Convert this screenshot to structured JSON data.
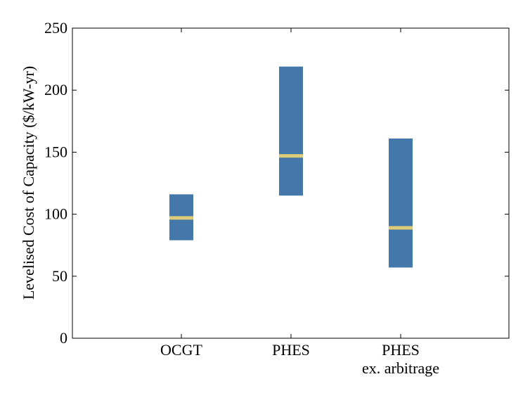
{
  "chart_data": {
    "type": "box",
    "title": "",
    "xlabel": "",
    "ylabel": "Levelised Cost of Capacity ($/kW-yr)",
    "ylim": [
      0,
      250
    ],
    "yticks": [
      "0",
      "50",
      "100",
      "150",
      "200",
      "250"
    ],
    "grid": false,
    "categories": [
      {
        "line1": "OCGT",
        "line2": ""
      },
      {
        "line1": "PHES",
        "line2": ""
      },
      {
        "line1": "PHES",
        "line2": "ex. arbitrage"
      }
    ],
    "ranges": [
      {
        "low": 79,
        "high": 116,
        "median": 97
      },
      {
        "low": 115,
        "high": 219,
        "median": 147
      },
      {
        "low": 57,
        "high": 161,
        "median": 89
      }
    ],
    "colors": {
      "box": "#4477aa",
      "median": "#ddcc77",
      "axis": "#000000"
    }
  }
}
